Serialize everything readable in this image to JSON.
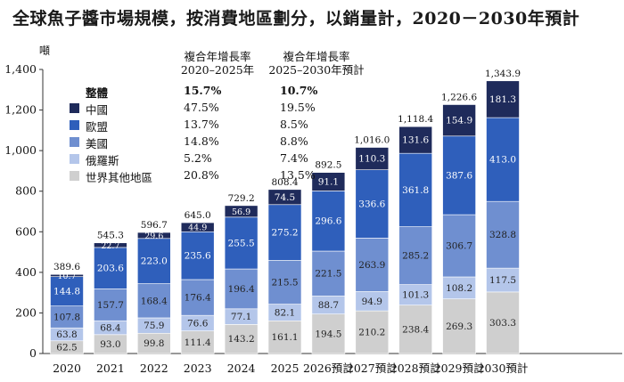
{
  "title": "全球魚子醬市場規模，按消費地區劃分，以銷量計，2020－2030年預計",
  "unit": "噸",
  "cagr_headers": [
    {
      "line1": "複合年增長率",
      "line2": "2020–2025年"
    },
    {
      "line1": "複合年增長率",
      "line2": "2025–2030年預計"
    }
  ],
  "legend": [
    {
      "name": "整體",
      "v1": "15.7%",
      "v2": "10.7%",
      "color": ""
    },
    {
      "name": "中國",
      "v1": "47.5%",
      "v2": "19.5%",
      "color": "#1f2b5b"
    },
    {
      "name": "歐盟",
      "v1": "13.7%",
      "v2": "8.5%",
      "color": "#2f5fbb"
    },
    {
      "name": "美國",
      "v1": "14.8%",
      "v2": "8.8%",
      "color": "#6f8fd0"
    },
    {
      "name": "俄羅斯",
      "v1": "5.2%",
      "v2": "7.4%",
      "color": "#b4c6ea"
    },
    {
      "name": "世界其他地區",
      "v1": "20.8%",
      "v2": "13.5%",
      "color": "#cfcfcf"
    }
  ],
  "chart_data": {
    "type": "bar",
    "stacked": true,
    "categories": [
      "2020",
      "2021",
      "2022",
      "2023",
      "2024",
      "2025",
      "2026預計",
      "2027預計",
      "2028預計",
      "2029預計",
      "2030預計"
    ],
    "ylim": [
      0,
      1400
    ],
    "yticks": [
      "0",
      "200",
      "400",
      "600",
      "800",
      "1,000",
      "1,200",
      "1,400"
    ],
    "totals": [
      "389.6",
      "545.3",
      "596.7",
      "645.0",
      "729.2",
      "808.4",
      "892.5",
      "1,016.0",
      "1,118.4",
      "1,226.6",
      "1,343.9"
    ],
    "series": [
      {
        "name": "世界其他地區",
        "color": "#cfcfcf",
        "label_color": "#222222",
        "values": [
          62.5,
          93.0,
          99.8,
          111.4,
          143.2,
          161.1,
          194.5,
          210.2,
          238.4,
          269.3,
          303.3
        ]
      },
      {
        "name": "俄羅斯",
        "color": "#b4c6ea",
        "label_color": "#222222",
        "values": [
          63.8,
          68.4,
          75.9,
          76.6,
          77.1,
          82.1,
          88.7,
          94.9,
          101.3,
          108.2,
          117.5
        ]
      },
      {
        "name": "美國",
        "color": "#6f8fd0",
        "label_color": "#222222",
        "values": [
          107.8,
          157.7,
          168.4,
          176.4,
          196.4,
          215.5,
          221.5,
          263.9,
          285.2,
          306.7,
          328.8
        ]
      },
      {
        "name": "歐盟",
        "color": "#2f5fbb",
        "label_color": "#ffffff",
        "values": [
          144.8,
          203.6,
          223.0,
          235.6,
          255.5,
          275.2,
          296.6,
          336.6,
          361.8,
          387.6,
          413.0
        ]
      },
      {
        "name": "中國",
        "color": "#1f2b5b",
        "label_color": "#ffffff",
        "values": [
          10.7,
          22.7,
          29.6,
          44.9,
          56.9,
          74.5,
          91.1,
          110.3,
          131.6,
          154.9,
          181.3
        ]
      }
    ],
    "value_labels": [
      [
        "62.5",
        "93.0",
        "99.8",
        "111.4",
        "143.2",
        "161.1",
        "194.5",
        "210.2",
        "238.4",
        "269.3",
        "303.3"
      ],
      [
        "63.8",
        "68.4",
        "75.9",
        "76.6",
        "77.1",
        "82.1",
        "88.7",
        "94.9",
        "101.3",
        "108.2",
        "117.5"
      ],
      [
        "107.8",
        "157.7",
        "168.4",
        "176.4",
        "196.4",
        "215.5",
        "221.5",
        "263.9",
        "285.2",
        "306.7",
        "328.8"
      ],
      [
        "144.8",
        "203.6",
        "223.0",
        "235.6",
        "255.5",
        "275.2",
        "296.6",
        "336.6",
        "361.8",
        "387.6",
        "413.0"
      ],
      [
        "10.7",
        "22.7",
        "29.6",
        "44.9",
        "56.9",
        "74.5",
        "91.1",
        "110.3",
        "131.6",
        "154.9",
        "181.3"
      ]
    ]
  }
}
